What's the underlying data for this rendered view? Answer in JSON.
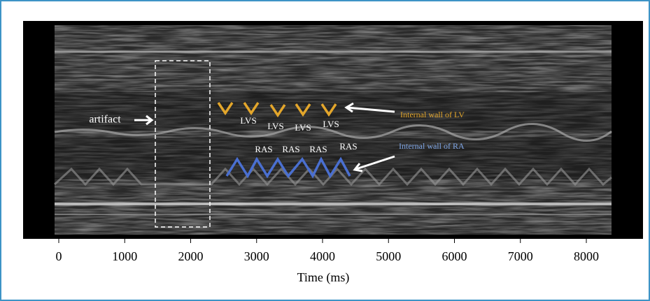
{
  "annotations": {
    "artifact": "artifact",
    "lvs": [
      "LVS",
      "LVS",
      "LVS",
      "LVS"
    ],
    "ras": [
      "RAS",
      "RAS",
      "RAS",
      "RAS"
    ],
    "lv_wall": "Internal wall of LV",
    "ra_wall": "Internal wall of RA"
  },
  "axis": {
    "label": "Time (ms)",
    "ticks": [
      0,
      1000,
      2000,
      3000,
      4000,
      5000,
      6000,
      7000,
      8000
    ]
  }
}
